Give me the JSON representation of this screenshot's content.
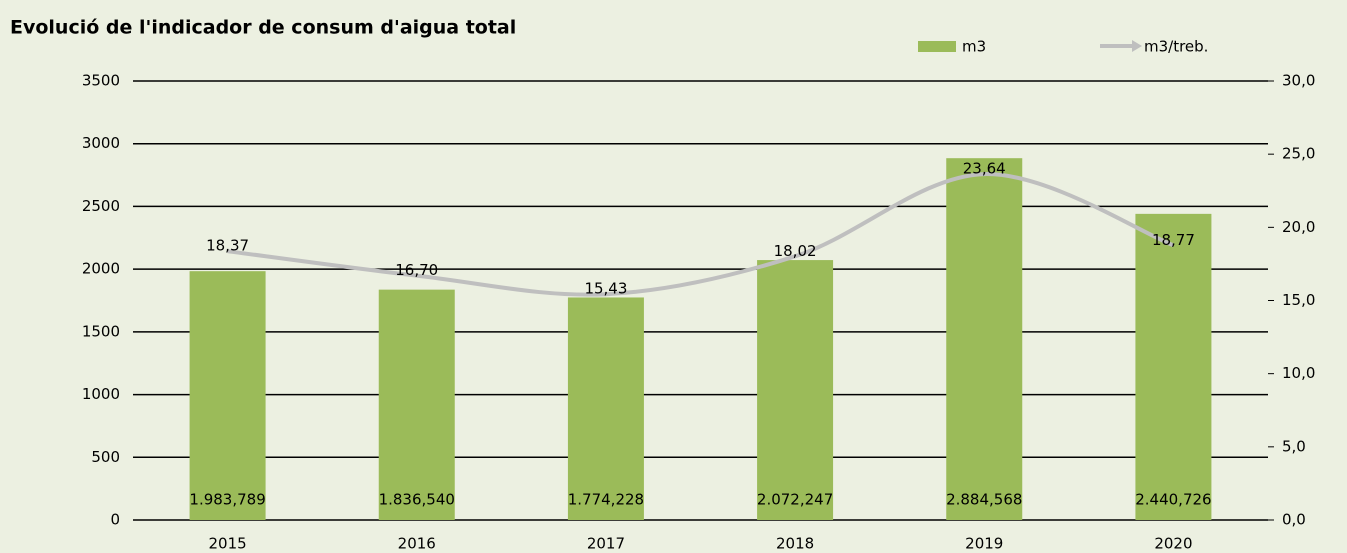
{
  "chart_data": {
    "type": "bar",
    "title": "Evolució de l'indicador de consum d'aigua total",
    "categories": [
      "2015",
      "2016",
      "2017",
      "2018",
      "2019",
      "2020"
    ],
    "series": [
      {
        "name": "m3",
        "type": "bar",
        "color": "#9bbb59",
        "values": [
          1983.789,
          1836.54,
          1774.228,
          2072.247,
          2884.568,
          2440.726
        ],
        "value_labels": [
          "1.983,789",
          "1.836,540",
          "1.774,228",
          "2.072,247",
          "2.884,568",
          "2.440,726"
        ]
      },
      {
        "name": "m3/treb.",
        "type": "line",
        "axis": "y2",
        "color": "#bfbfbf",
        "values": [
          18.37,
          16.7,
          15.43,
          18.02,
          23.64,
          18.77
        ],
        "value_labels": [
          "18,37",
          "16,70",
          "15,43",
          "18,02",
          "23,64",
          "18,77"
        ]
      }
    ],
    "ylim": [
      0,
      3500
    ],
    "yticks": [
      0,
      500,
      1000,
      1500,
      2000,
      2500,
      3000,
      3500
    ],
    "y2lim": [
      0,
      30
    ],
    "y2ticks": [
      {
        "value": 0,
        "label": "0,0"
      },
      {
        "value": 5,
        "label": "5,0"
      },
      {
        "value": 10,
        "label": "10,0"
      },
      {
        "value": 15,
        "label": "15,0"
      },
      {
        "value": 20,
        "label": "20,0"
      },
      {
        "value": 25,
        "label": "25,0"
      },
      {
        "value": 30,
        "label": "30,0"
      }
    ],
    "grid": true
  }
}
